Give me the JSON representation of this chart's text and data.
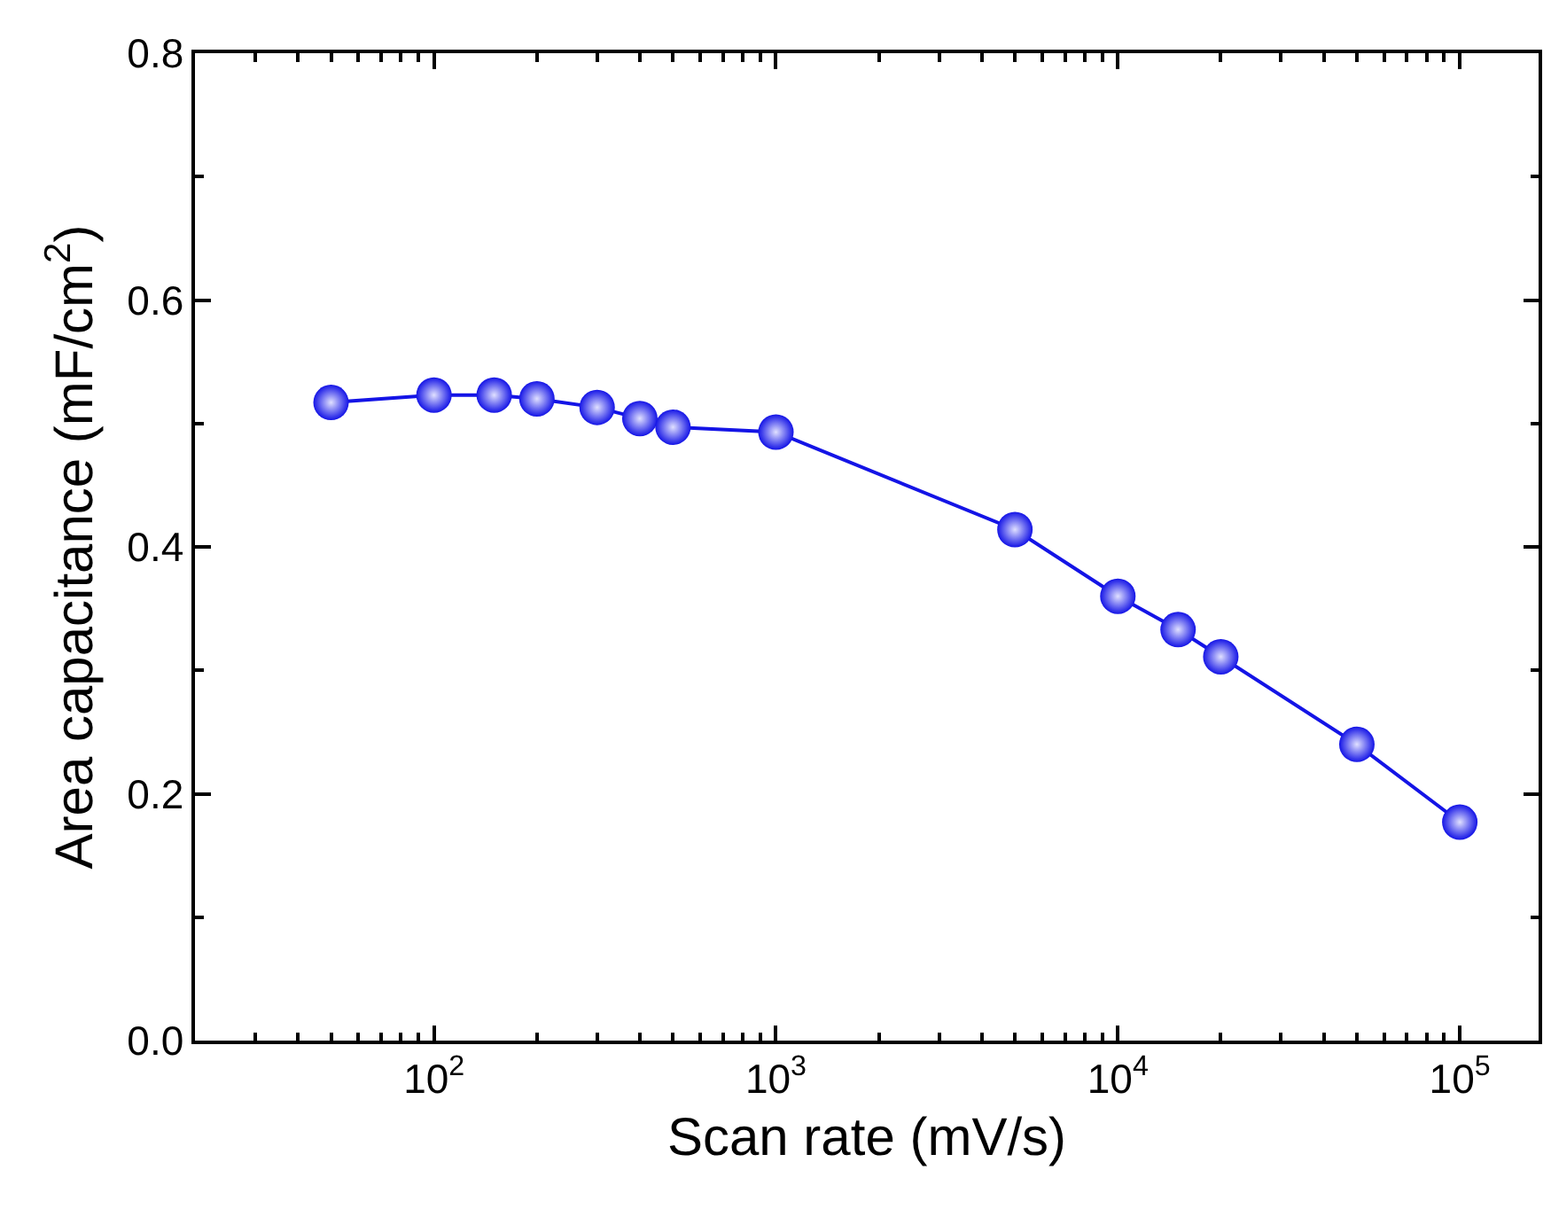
{
  "chart_data": {
    "type": "line",
    "xlabel": "Scan rate (mV/s)",
    "ylabel": "Area capacitance (mF/cm$^{2}$)",
    "log": "x",
    "marker": "circle",
    "line_style": "solid",
    "legend": false,
    "x": [
      50,
      100,
      150,
      200,
      300,
      400,
      500,
      1000,
      5000,
      10000,
      15000,
      20000,
      50000,
      100000
    ],
    "series": [
      {
        "color": "#1414e6",
        "values": [
          0.517,
          0.523,
          0.523,
          0.52,
          0.513,
          0.504,
          0.497,
          0.493,
          0.414,
          0.36,
          0.333,
          0.311,
          0.24,
          0.177
        ]
      }
    ],
    "xlim": [
      20,
      170000
    ],
    "xticks": [
      {
        "value": 100,
        "label": "10$^{2}$"
      },
      {
        "value": 1000,
        "label": "10$^{3}$"
      },
      {
        "value": 10000,
        "label": "10$^{4}$"
      },
      {
        "value": 100000,
        "label": "10$^{5}$"
      }
    ],
    "ylim": [
      0,
      0.8
    ],
    "yticks": [
      {
        "value": 0,
        "label": "0.0"
      },
      {
        "value": 0.2,
        "label": "0.2"
      },
      {
        "value": 0.4,
        "label": "0.4"
      },
      {
        "value": 0.6,
        "label": "0.6"
      },
      {
        "value": 0.8,
        "label": "0.8"
      }
    ]
  }
}
